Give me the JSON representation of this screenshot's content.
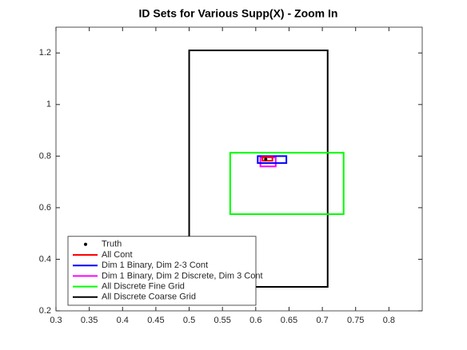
{
  "chart_data": {
    "type": "rectangles",
    "title": "ID Sets for Various Supp(X) - Zoom In",
    "xlim": [
      0.3,
      0.85
    ],
    "ylim": [
      0.2,
      1.3
    ],
    "xticks": [
      0.3,
      0.35,
      0.4,
      0.45,
      0.5,
      0.55,
      0.6,
      0.65,
      0.7,
      0.75,
      0.8
    ],
    "yticks": [
      0.2,
      0.4,
      0.6,
      0.8,
      1,
      1.2
    ],
    "legend": "lower left",
    "point": {
      "name": "Truth",
      "color": "#000000",
      "x": 0.615,
      "y": 0.788
    },
    "series": [
      {
        "name": "All Cont",
        "color": "#ff0000",
        "x": [
          0.61,
          0.625
        ],
        "y": [
          0.782,
          0.797
        ]
      },
      {
        "name": "Dim 1 Binary, Dim 2-3 Cont",
        "color": "#0000ff",
        "x": [
          0.603,
          0.646
        ],
        "y": [
          0.773,
          0.8
        ]
      },
      {
        "name": "Dim 1 Binary, Dim 2 Discrete, Dim 3 Cont",
        "color": "#ff00ff",
        "x": [
          0.607,
          0.63
        ],
        "y": [
          0.76,
          0.795
        ]
      },
      {
        "name": "All Discrete Fine Grid",
        "color": "#00ff00",
        "x": [
          0.5616,
          0.732
        ],
        "y": [
          0.575,
          0.813
        ]
      },
      {
        "name": "All Discrete Coarse Grid",
        "color": "#000000",
        "x": [
          0.5,
          0.708
        ],
        "y": [
          0.293,
          1.21
        ]
      }
    ]
  }
}
